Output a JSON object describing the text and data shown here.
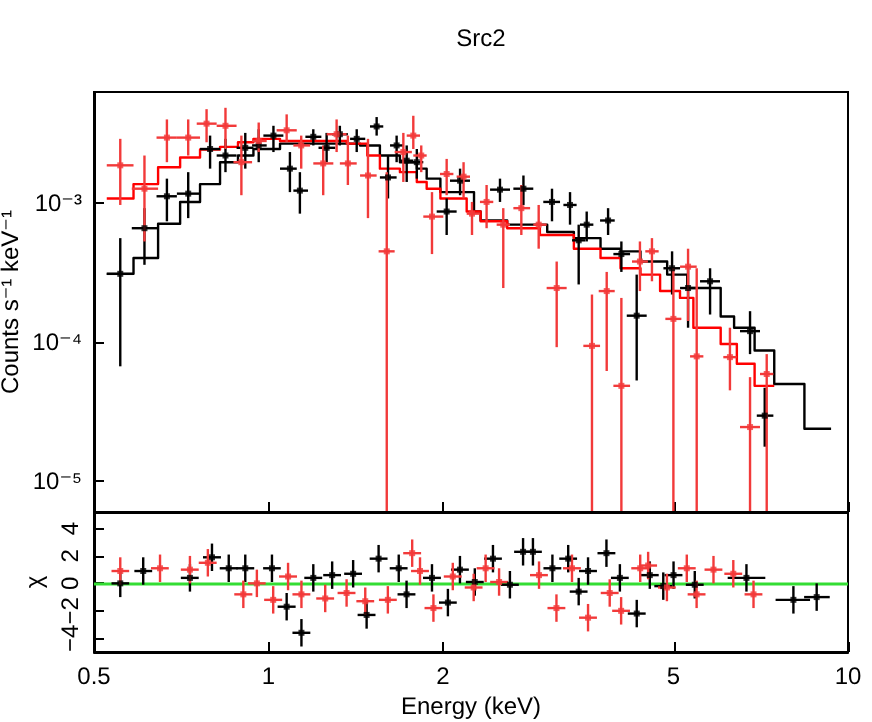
{
  "chart_data": [
    {
      "type": "scatter",
      "title": "Src2",
      "ylabel": "Counts s⁻¹ keV⁻¹",
      "log": "xy",
      "xlim": [
        0.5,
        10
      ],
      "ylim": [
        6e-06,
        0.0063
      ],
      "xticks": [
        0.5,
        1,
        2,
        5,
        10
      ],
      "yticks": [
        {
          "value": 1e-05,
          "label": "10⁻⁵"
        },
        {
          "value": 0.0001,
          "label": "10⁻⁴"
        },
        {
          "value": 0.001,
          "label": "10⁻³"
        }
      ],
      "tick_labels": "y",
      "series": [
        {
          "color": "#000000",
          "x": [
            0.555,
            0.611,
            0.668,
            0.727,
            0.793,
            0.843,
            0.912,
            0.962,
            1.02,
            1.089,
            1.133,
            1.195,
            1.26,
            1.328,
            1.42,
            1.537,
            1.608,
            1.664,
            1.732,
            1.803,
            2.03,
            2.141,
            2.509,
            2.754,
            3.085,
            3.314,
            3.43,
            3.541,
            3.855,
            4.064,
            4.319,
            4.971,
            5.297,
            5.781,
            6.776,
            7.183
          ],
          "values": [
            0.00031,
            0.00066,
            0.00112,
            0.00117,
            0.00245,
            0.0022,
            0.0025,
            0.0026,
            0.00306,
            0.00177,
            0.00123,
            0.003,
            0.0025,
            0.00313,
            0.0029,
            0.00356,
            0.00153,
            0.0026,
            0.00202,
            0.00197,
            0.00087,
            0.00145,
            0.00125,
            0.00127,
            0.00102,
            0.00097,
            0.00054,
            0.0007,
            0.00075,
            0.00043,
            0.000155,
            0.00034,
            0.000245,
            0.000274,
            0.00012,
            2.96e-05
          ],
          "xerrors": [
            [
              0.526,
              0.585
            ],
            [
              0.581,
              0.645
            ],
            [
              0.641,
              0.695
            ],
            [
              0.695,
              0.762
            ],
            [
              0.762,
              0.825
            ],
            [
              0.814,
              0.881
            ],
            [
              0.881,
              0.942
            ],
            [
              0.937,
              0.993
            ],
            [
              0.98,
              1.061
            ],
            [
              1.047,
              1.119
            ],
            [
              1.104,
              1.17
            ],
            [
              1.158,
              1.234
            ],
            [
              1.22,
              1.304
            ],
            [
              1.287,
              1.371
            ],
            [
              1.383,
              1.469
            ],
            [
              1.497,
              1.578
            ],
            [
              1.557,
              1.664
            ],
            [
              1.621,
              1.709
            ],
            [
              1.686,
              1.778
            ],
            [
              1.755,
              1.85
            ],
            [
              1.951,
              2.112
            ],
            [
              2.057,
              2.227
            ],
            [
              2.412,
              2.611
            ],
            [
              2.646,
              2.864
            ],
            [
              2.98,
              3.185
            ],
            [
              3.228,
              3.402
            ],
            [
              3.34,
              3.522
            ],
            [
              3.448,
              3.636
            ],
            [
              3.734,
              3.958
            ],
            [
              3.937,
              4.207
            ],
            [
              4.152,
              4.494
            ],
            [
              4.803,
              5.131
            ],
            [
              5.131,
              5.482
            ],
            [
              5.555,
              6.013
            ],
            [
              6.511,
              7.049
            ],
            [
              6.96,
              7.434
            ]
          ],
          "errors": [
            [
              6.7e-05,
              0.00056
            ],
            [
              0.00036,
              0.00092
            ],
            [
              0.00074,
              0.0015
            ],
            [
              0.00078,
              0.00167
            ],
            [
              0.00177,
              0.00306
            ],
            [
              0.00167,
              0.0029
            ],
            [
              0.00177,
              0.0032
            ],
            [
              0.00197,
              0.0034
            ],
            [
              0.00233,
              0.0036
            ],
            [
              0.0012,
              0.00233
            ],
            [
              0.00084,
              0.00167
            ],
            [
              0.0026,
              0.0034
            ],
            [
              0.00197,
              0.0032
            ],
            [
              0.0026,
              0.0036
            ],
            [
              0.00233,
              0.0034
            ],
            [
              0.00306,
              0.00416
            ],
            [
              0.00108,
              0.0022
            ],
            [
              0.00197,
              0.00306
            ],
            [
              0.00142,
              0.0026
            ],
            [
              0.0015,
              0.00245
            ],
            [
              0.00059,
              0.00108
            ],
            [
              0.00114,
              0.00177
            ],
            [
              0.00102,
              0.0015
            ],
            [
              0.00097,
              0.00158
            ],
            [
              0.00074,
              0.00127
            ],
            [
              0.0007,
              0.0012
            ],
            [
              0.00026,
              0.0007
            ],
            [
              0.00053,
              0.00087
            ],
            [
              0.00059,
              0.00092
            ],
            [
              0.00032,
              0.00053
            ],
            [
              5.3e-05,
              0.000306
            ],
            [
              0.00022,
              0.00045
            ],
            [
              0.000127,
              0.00034
            ],
            [
              0.000158,
              0.00034
            ],
            [
              8.2e-05,
              0.000167
            ],
            [
              1.77e-05,
              4.7e-05
            ]
          ]
        },
        {
          "color": "#f23a3a",
          "x": [
            0.555,
            0.611,
            0.668,
            0.727,
            0.782,
            0.843,
            0.898,
            0.962,
            1.075,
            1.139,
            1.243,
            1.311,
            1.371,
            1.485,
            1.6,
            1.709,
            1.778,
            1.835,
            1.915,
            2.03,
            2.171,
            2.245,
            2.379,
            2.542,
            2.731,
            2.926,
            3.143,
            3.616,
            3.834,
            4.064,
            4.375,
            4.589,
            4.997,
            5.297,
            5.482,
            6.256,
            6.776,
            7.24
          ],
          "values": [
            0.00187,
            0.00127,
            0.00296,
            0.00296,
            0.00373,
            0.0036,
            0.00197,
            0.0028,
            0.00334,
            0.0026,
            0.00193,
            0.00313,
            0.00193,
            0.00158,
            0.00045,
            0.00233,
            0.00306,
            0.0022,
            0.0008,
            0.00162,
            0.00155,
            0.00084,
            0.00102,
            0.0007,
            0.00092,
            0.0007,
            0.000245,
            9.4e-05,
            0.000233,
            4.85e-05,
            0.00038,
            0.00045,
            0.000147,
            0.000349,
            7.9e-05,
            7.8e-05,
            2.45e-05,
            5.9e-05
          ],
          "xerrors": [
            [
              0.526,
              0.585
            ],
            [
              0.581,
              0.645
            ],
            [
              0.641,
              0.695
            ],
            [
              0.695,
              0.762
            ],
            [
              0.752,
              0.814
            ],
            [
              0.814,
              0.881
            ],
            [
              0.87,
              0.937
            ],
            [
              0.937,
              0.993
            ],
            [
              1.033,
              1.119
            ],
            [
              1.104,
              1.18
            ],
            [
              1.195,
              1.294
            ],
            [
              1.26,
              1.364
            ],
            [
              1.328,
              1.42
            ],
            [
              1.439,
              1.537
            ],
            [
              1.549,
              1.651
            ],
            [
              1.651,
              1.768
            ],
            [
              1.732,
              1.826
            ],
            [
              1.778,
              1.875
            ],
            [
              1.85,
              2.003
            ],
            [
              1.977,
              2.085
            ],
            [
              2.112,
              2.227
            ],
            [
              2.198,
              2.317
            ],
            [
              2.317,
              2.443
            ],
            [
              2.476,
              2.611
            ],
            [
              2.646,
              2.828
            ],
            [
              2.864,
              3.02
            ],
            [
              3.02,
              3.27
            ],
            [
              3.494,
              3.734
            ],
            [
              3.714,
              3.958
            ],
            [
              3.937,
              4.207
            ],
            [
              4.239,
              4.516
            ],
            [
              4.469,
              4.713
            ],
            [
              4.84,
              5.158
            ],
            [
              5.131,
              5.482
            ],
            [
              5.339,
              5.629
            ],
            [
              6.093,
              6.426
            ],
            [
              6.511,
              7.049
            ],
            [
              7.049,
              7.434
            ]
          ],
          "errors": [
            [
              0.00097,
              0.0029
            ],
            [
              0.00053,
              0.0022
            ],
            [
              0.00197,
              0.004
            ],
            [
              0.0022,
              0.004
            ],
            [
              0.00274,
              0.00474
            ],
            [
              0.00245,
              0.00485
            ],
            [
              0.00114,
              0.00306
            ],
            [
              0.00233,
              0.0038
            ],
            [
              0.00274,
              0.00435
            ],
            [
              0.00177,
              0.00306
            ],
            [
              0.00114,
              0.0026
            ],
            [
              0.00233,
              0.004
            ],
            [
              0.00135,
              0.00306
            ],
            [
              0.00078,
              0.0029
            ],
            [
              6e-06,
              0.00167
            ],
            [
              0.00142,
              0.0032
            ],
            [
              0.00245,
              0.00425
            ],
            [
              0.00167,
              0.0026
            ],
            [
              0.00043,
              0.0012
            ],
            [
              0.00114,
              0.00208
            ],
            [
              0.00108,
              0.00197
            ],
            [
              0.00059,
              0.00102
            ],
            [
              0.00066,
              0.00135
            ],
            [
              0.000245,
              0.00092
            ],
            [
              0.00059,
              0.00135
            ],
            [
              0.00047,
              0.00097
            ],
            [
              9.2e-05,
              0.00038
            ],
            [
              6e-06,
              0.00022
            ],
            [
              6.2e-05,
              0.00032
            ],
            [
              6e-06,
              0.000208
            ],
            [
              0.000233,
              0.00053
            ],
            [
              0.000274,
              0.00056
            ],
            [
              6e-06,
              0.00034
            ],
            [
              0.000142,
              0.00047
            ],
            [
              6e-06,
              0.00034
            ],
            [
              4.5e-05,
              0.000127
            ],
            [
              6e-06,
              5.6e-05
            ],
            [
              6e-06,
              8.2e-05
            ]
          ]
        },
        {
          "type": "step",
          "color": "#000000",
          "x": [
            0.526,
            0.585,
            0.645,
            0.704,
            0.762,
            0.825,
            0.886,
            0.942,
            1.047,
            1.439,
            1.557,
            1.686,
            1.803,
            1.875,
            1.98,
            2.263,
            2.323,
            2.582,
            3.027,
            3.365,
            3.741,
            4.05,
            4.385,
            4.875,
            5.28,
            6.03,
            6.36,
            6.9,
            7.46,
            8.41,
            9.35
          ],
          "values": [
            0.00031,
            0.000403,
            0.00071,
            0.00102,
            0.00137,
            0.00197,
            0.0022,
            0.00245,
            0.00268,
            0.0026,
            0.0022,
            0.00197,
            0.00177,
            0.0015,
            0.0012,
            0.00087,
            0.00075,
            0.0007,
            0.00062,
            0.00056,
            0.00047,
            0.00045,
            0.00038,
            0.000306,
            0.000245,
            0.000153,
            0.000127,
            8.7e-05,
            5e-05,
            2.38e-05,
            2.38e-05
          ]
        },
        {
          "type": "step",
          "color": "#ff0000",
          "x": [
            0.526,
            0.585,
            0.645,
            0.704,
            0.762,
            0.825,
            0.886,
            0.942,
            1.047,
            1.365,
            1.481,
            1.557,
            1.686,
            1.803,
            1.875,
            1.98,
            2.198,
            2.323,
            2.582,
            2.94,
            3.365,
            3.741,
            4.05,
            4.385,
            4.74,
            5.13,
            5.41,
            6.03,
            6.43,
            6.9,
            7.46
          ],
          "values": [
            0.00108,
            0.00137,
            0.00181,
            0.00213,
            0.00243,
            0.00254,
            0.00274,
            0.0029,
            0.0028,
            0.00268,
            0.0022,
            0.00177,
            0.00167,
            0.00142,
            0.00127,
            0.00108,
            0.00087,
            0.00074,
            0.00066,
            0.00059,
            0.00047,
            0.000403,
            0.00034,
            0.000306,
            0.000233,
            0.000208,
            0.000127,
            9.7e-05,
            7e-05,
            4.85e-05,
            4.85e-05
          ]
        }
      ]
    },
    {
      "type": "scatter",
      "xlabel": "Energy (keV)",
      "ylabel": "χ",
      "log": "x",
      "xlim": [
        0.5,
        10
      ],
      "ylim": [
        -5,
        5.2
      ],
      "xticks": [
        0.5,
        1,
        2,
        5,
        10
      ],
      "yticks": [
        {
          "value": -4,
          "label": "−4"
        },
        {
          "value": -2,
          "label": "−2"
        },
        0,
        2,
        4
      ],
      "ref_lines": [
        {
          "axis": "y",
          "value": 0,
          "color": "#33dd33"
        }
      ],
      "series": [
        {
          "color": "#000000",
          "x": [
            0.555,
            0.608,
            0.732,
            0.799,
            0.854,
            0.912,
            1.014,
            1.075,
            1.14,
            1.195,
            1.288,
            1.4,
            1.477,
            1.549,
            1.678,
            1.731,
            1.915,
            2.04,
            2.14,
            2.27,
            2.44,
            2.61,
            2.75,
            2.86,
            3.09,
            3.29,
            3.43,
            3.56,
            3.83,
            4.04,
            4.32,
            4.55,
            4.8,
            5.0,
            5.44,
            6.68,
            8.05,
            8.83
          ],
          "xerrors": [
            [
              0.536,
              0.575
            ],
            [
              0.587,
              0.63
            ],
            [
              0.706,
              0.758
            ],
            [
              0.771,
              0.828
            ],
            [
              0.824,
              0.885
            ],
            [
              0.88,
              0.945
            ],
            [
              0.979,
              1.05
            ],
            [
              1.037,
              1.114
            ],
            [
              1.1,
              1.181
            ],
            [
              1.153,
              1.238
            ],
            [
              1.243,
              1.334
            ],
            [
              1.351,
              1.45
            ],
            [
              1.425,
              1.53
            ],
            [
              1.495,
              1.605
            ],
            [
              1.619,
              1.738
            ],
            [
              1.67,
              1.793
            ],
            [
              1.848,
              1.984
            ],
            [
              1.969,
              2.113
            ],
            [
              2.065,
              2.217
            ],
            [
              2.191,
              2.352
            ],
            [
              2.355,
              2.528
            ],
            [
              2.519,
              2.704
            ],
            [
              2.654,
              2.849
            ],
            [
              2.76,
              2.963
            ],
            [
              2.982,
              3.201
            ],
            [
              3.175,
              3.408
            ],
            [
              3.31,
              3.553
            ],
            [
              3.435,
              3.688
            ],
            [
              3.696,
              3.968
            ],
            [
              3.899,
              4.185
            ],
            [
              4.169,
              4.476
            ],
            [
              4.391,
              4.714
            ],
            [
              4.632,
              4.973
            ],
            [
              4.825,
              5.18
            ],
            [
              5.25,
              5.636
            ],
            [
              6.2,
              7.2
            ],
            [
              7.5,
              8.6
            ],
            [
              8.4,
              9.3
            ]
          ],
          "values": [
            0,
            0.9,
            0.4,
            1.9,
            1.1,
            1.1,
            1.1,
            -1.7,
            -3.6,
            0.4,
            0.6,
            0.7,
            -2.3,
            1.8,
            1.1,
            -0.8,
            0.4,
            -1.4,
            1.0,
            0.1,
            1.8,
            -0.1,
            2.3,
            2.3,
            1.1,
            1.8,
            -0.6,
            0.9,
            2.2,
            0.4,
            -2.2,
            0.6,
            -0.2,
            0.6,
            -0.1,
            0.4,
            -1.2,
            -1.0
          ],
          "errors": [
            1,
            1,
            1,
            1,
            1,
            1,
            1,
            1,
            1,
            1,
            1,
            1,
            1,
            1,
            1,
            1,
            1,
            1,
            1,
            1,
            1,
            1,
            1,
            1,
            1,
            1,
            1,
            1,
            1,
            1,
            1,
            1,
            1,
            1,
            1,
            1,
            1,
            1
          ]
        },
        {
          "color": "#f23a3a",
          "x": [
            0.555,
            0.65,
            0.732,
            0.786,
            0.905,
            0.955,
            1.019,
            1.081,
            1.14,
            1.253,
            1.364,
            1.469,
            1.607,
            1.77,
            1.826,
            1.926,
            2.08,
            2.26,
            2.37,
            2.5,
            2.93,
            3.14,
            3.34,
            3.56,
            3.88,
            4.06,
            4.38,
            4.52,
            4.87,
            5.27,
            5.48,
            5.86,
            6.34,
            6.87
          ],
          "xerrors": [
            [
              0.536,
              0.575
            ],
            [
              0.627,
              0.673
            ],
            [
              0.706,
              0.758
            ],
            [
              0.758,
              0.814
            ],
            [
              0.873,
              0.938
            ],
            [
              0.922,
              0.989
            ],
            [
              0.983,
              1.056
            ],
            [
              1.043,
              1.12
            ],
            [
              1.1,
              1.181
            ],
            [
              1.209,
              1.298
            ],
            [
              1.316,
              1.413
            ],
            [
              1.418,
              1.522
            ],
            [
              1.551,
              1.665
            ],
            [
              1.708,
              1.834
            ],
            [
              1.762,
              1.892
            ],
            [
              1.859,
              1.995
            ],
            [
              2.007,
              2.155
            ],
            [
              2.181,
              2.341
            ],
            [
              2.287,
              2.455
            ],
            [
              2.413,
              2.59
            ],
            [
              2.827,
              3.035
            ],
            [
              3.03,
              3.253
            ],
            [
              3.223,
              3.46
            ],
            [
              3.435,
              3.688
            ],
            [
              3.744,
              4.02
            ],
            [
              3.918,
              4.206
            ],
            [
              4.227,
              4.538
            ],
            [
              4.362,
              4.683
            ],
            [
              4.7,
              5.045
            ],
            [
              5.086,
              5.46
            ],
            [
              5.288,
              5.677
            ],
            [
              5.655,
              6.071
            ],
            [
              6.118,
              6.568
            ],
            [
              6.63,
              7.117
            ]
          ],
          "values": [
            0.9,
            1.1,
            1.0,
            1.5,
            -0.8,
            0.0,
            -1.2,
            0.5,
            -0.8,
            -1.1,
            -0.7,
            -1.3,
            -1.2,
            2.2,
            0.9,
            -1.8,
            0.5,
            -0.3,
            1.1,
            0.1,
            0.6,
            -1.8,
            1.1,
            -2.5,
            -0.7,
            -2.0,
            1.1,
            1.3,
            -0.3,
            1.1,
            -0.8,
            1.0,
            0.7,
            -0.8
          ],
          "errors": [
            1,
            1,
            1,
            1,
            1,
            1,
            1,
            1,
            1,
            1,
            1,
            1,
            1,
            1,
            1,
            1,
            1,
            1,
            1,
            1,
            1,
            1,
            1,
            1,
            1,
            1,
            1,
            1,
            1,
            1,
            1,
            1,
            1,
            1
          ]
        }
      ]
    }
  ]
}
